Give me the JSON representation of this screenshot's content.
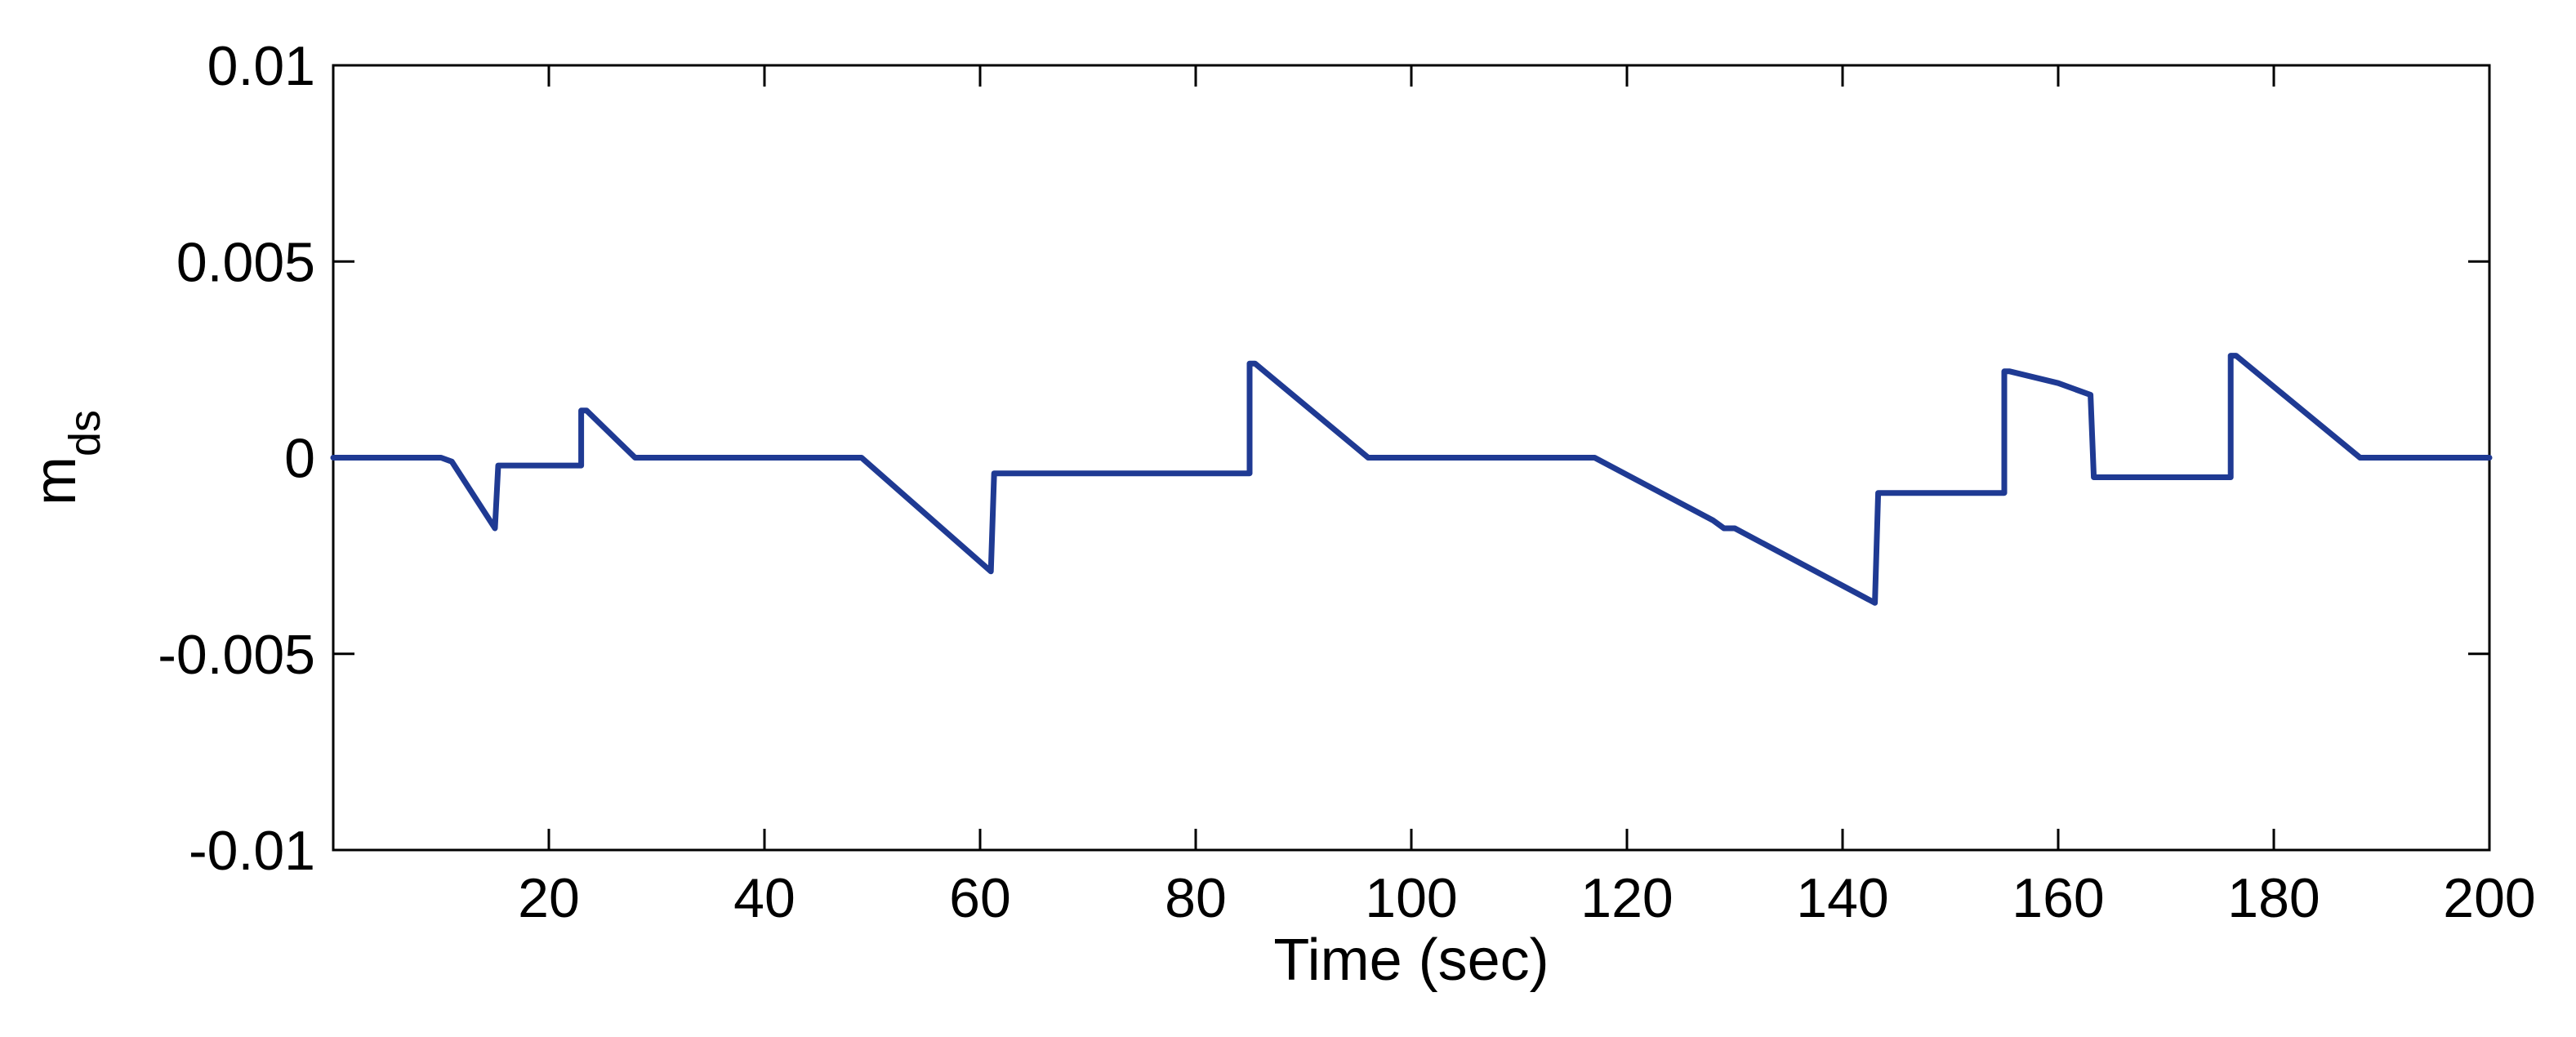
{
  "chart_data": {
    "type": "line",
    "title": "",
    "xlabel": "Time (sec)",
    "ylabel": {
      "main": "m",
      "subscript": "ds"
    },
    "xlim": [
      0,
      200
    ],
    "ylim": [
      -0.01,
      0.01
    ],
    "xticks": [
      20,
      40,
      60,
      80,
      100,
      120,
      140,
      160,
      180,
      200
    ],
    "xtick_labels": [
      "20",
      "40",
      "60",
      "80",
      "100",
      "120",
      "140",
      "160",
      "180",
      "200"
    ],
    "yticks": [
      -0.01,
      -0.005,
      0,
      0.005,
      0.01
    ],
    "ytick_labels": [
      "-0.01",
      "-0.005",
      "0",
      "0.005",
      "0.01"
    ],
    "grid": false,
    "legend": "none",
    "series": [
      {
        "color": "#1f3a93",
        "x": [
          0,
          10,
          11,
          15,
          15,
          15.3,
          22,
          23,
          23,
          23.5,
          28,
          49,
          61,
          61,
          61.3,
          85,
          85,
          85.5,
          96,
          117,
          128,
          129,
          130,
          143,
          143,
          143.3,
          155,
          155,
          155.5,
          160,
          163,
          163,
          163.3,
          176,
          176,
          176.5,
          188,
          200
        ],
        "y": [
          0,
          0,
          -0.0001,
          -0.0018,
          -0.0018,
          -0.0002,
          -0.0002,
          -0.0002,
          0.0012,
          0.0012,
          0,
          0,
          -0.0029,
          -0.0029,
          -0.0004,
          -0.0004,
          0.0024,
          0.0024,
          0,
          0,
          -0.0016,
          -0.0018,
          -0.0018,
          -0.0037,
          -0.0037,
          -0.0009,
          -0.0009,
          0.0022,
          0.0022,
          0.0019,
          0.0016,
          0.0016,
          -0.0005,
          -0.0005,
          0.0026,
          0.0026,
          0,
          0
        ]
      }
    ]
  }
}
